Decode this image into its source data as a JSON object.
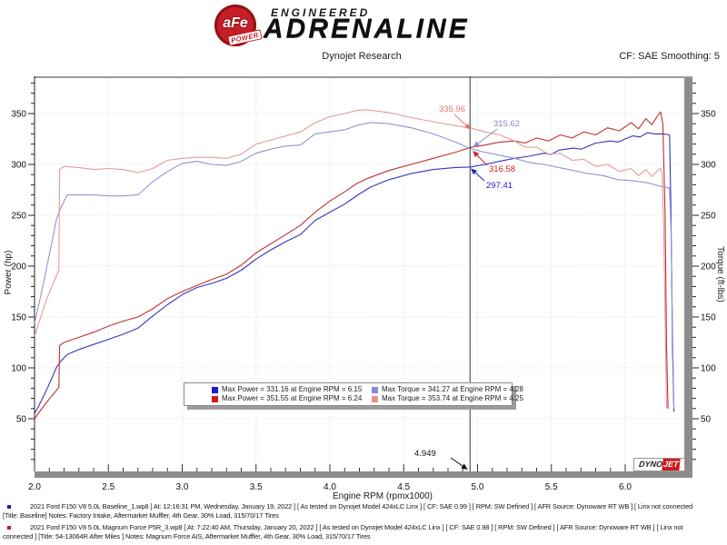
{
  "header": {
    "logo": {
      "afe": "aFe",
      "power": "POWER",
      "engineered": "ENGINEERED",
      "adrenaline": "ADRENALINE"
    },
    "title": "Dynojet Research",
    "smoothing": "CF: SAE Smoothing: 5"
  },
  "chart_data": {
    "type": "line",
    "title": "Dynojet Research",
    "xlabel": "Engine RPM (rpmx1000)",
    "ylabel_left": "Power (hp)",
    "ylabel_right": "Torque (ft-lbs)",
    "xlim": [
      2.0,
      6.4
    ],
    "ylim": [
      0,
      388
    ],
    "x_ticks": [
      "2.0",
      "2.5",
      "3.0",
      "3.5",
      "4.0",
      "4.5",
      "5.0",
      "5.5",
      "6.0"
    ],
    "y_ticks": [
      50,
      100,
      150,
      200,
      250,
      300,
      350
    ],
    "grid": true,
    "cursor_rpm": 4.949,
    "series": [
      {
        "name": "baseline-power",
        "axis": "power",
        "color": "#3434bd",
        "points": [
          [
            2.0,
            55
          ],
          [
            2.03,
            63
          ],
          [
            2.06,
            72
          ],
          [
            2.09,
            81
          ],
          [
            2.12,
            91
          ],
          [
            2.15,
            101
          ],
          [
            2.18,
            107
          ],
          [
            2.22,
            113
          ],
          [
            2.3,
            118
          ],
          [
            2.4,
            123
          ],
          [
            2.5,
            128
          ],
          [
            2.6,
            133
          ],
          [
            2.7,
            139
          ],
          [
            2.8,
            151
          ],
          [
            2.9,
            162
          ],
          [
            3.0,
            172
          ],
          [
            3.1,
            179
          ],
          [
            3.2,
            183
          ],
          [
            3.3,
            188
          ],
          [
            3.4,
            196
          ],
          [
            3.5,
            207
          ],
          [
            3.6,
            216
          ],
          [
            3.7,
            224
          ],
          [
            3.8,
            231
          ],
          [
            3.9,
            245
          ],
          [
            4.0,
            253
          ],
          [
            4.1,
            261
          ],
          [
            4.2,
            271
          ],
          [
            4.28,
            278
          ],
          [
            4.4,
            285
          ],
          [
            4.55,
            291
          ],
          [
            4.7,
            295
          ],
          [
            4.85,
            297
          ],
          [
            4.949,
            297.41
          ],
          [
            5.05,
            300
          ],
          [
            5.15,
            303
          ],
          [
            5.25,
            306
          ],
          [
            5.35,
            308
          ],
          [
            5.45,
            311
          ],
          [
            5.5,
            310
          ],
          [
            5.55,
            314
          ],
          [
            5.65,
            316
          ],
          [
            5.7,
            315
          ],
          [
            5.8,
            321
          ],
          [
            5.9,
            323
          ],
          [
            5.95,
            322
          ],
          [
            6.05,
            328
          ],
          [
            6.1,
            327
          ],
          [
            6.15,
            331.16
          ],
          [
            6.2,
            330
          ],
          [
            6.26,
            330
          ],
          [
            6.3,
            329
          ],
          [
            6.31,
            250
          ],
          [
            6.32,
            120
          ],
          [
            6.33,
            57
          ]
        ]
      },
      {
        "name": "magnum-power",
        "axis": "power",
        "color": "#c03030",
        "points": [
          [
            2.0,
            50
          ],
          [
            2.04,
            58
          ],
          [
            2.08,
            66
          ],
          [
            2.12,
            73
          ],
          [
            2.15,
            78
          ],
          [
            2.165,
            81
          ],
          [
            2.17,
            122
          ],
          [
            2.2,
            125
          ],
          [
            2.3,
            130
          ],
          [
            2.4,
            135
          ],
          [
            2.5,
            141
          ],
          [
            2.6,
            146
          ],
          [
            2.7,
            150
          ],
          [
            2.8,
            158
          ],
          [
            2.9,
            168
          ],
          [
            3.0,
            175
          ],
          [
            3.1,
            181
          ],
          [
            3.2,
            187
          ],
          [
            3.3,
            192
          ],
          [
            3.4,
            201
          ],
          [
            3.5,
            213
          ],
          [
            3.6,
            222
          ],
          [
            3.7,
            231
          ],
          [
            3.8,
            240
          ],
          [
            3.9,
            253
          ],
          [
            4.0,
            264
          ],
          [
            4.1,
            273
          ],
          [
            4.18,
            281
          ],
          [
            4.25,
            286
          ],
          [
            4.4,
            294
          ],
          [
            4.55,
            300
          ],
          [
            4.7,
            306
          ],
          [
            4.85,
            312
          ],
          [
            4.949,
            316.58
          ],
          [
            5.05,
            319
          ],
          [
            5.15,
            322
          ],
          [
            5.25,
            323
          ],
          [
            5.32,
            321
          ],
          [
            5.4,
            326
          ],
          [
            5.48,
            323
          ],
          [
            5.56,
            329
          ],
          [
            5.64,
            326
          ],
          [
            5.72,
            332
          ],
          [
            5.8,
            329
          ],
          [
            5.88,
            336
          ],
          [
            5.96,
            333
          ],
          [
            6.04,
            341
          ],
          [
            6.09,
            335
          ],
          [
            6.14,
            345
          ],
          [
            6.18,
            339
          ],
          [
            6.22,
            348
          ],
          [
            6.24,
            351.55
          ],
          [
            6.255,
            340
          ],
          [
            6.27,
            250
          ],
          [
            6.28,
            120
          ],
          [
            6.29,
            60
          ]
        ]
      },
      {
        "name": "baseline-torque",
        "axis": "torque",
        "color": "#9393d6",
        "points": [
          [
            2.0,
            144
          ],
          [
            2.03,
            163
          ],
          [
            2.06,
            183
          ],
          [
            2.09,
            204
          ],
          [
            2.12,
            225
          ],
          [
            2.15,
            247
          ],
          [
            2.18,
            258
          ],
          [
            2.22,
            270
          ],
          [
            2.3,
            270
          ],
          [
            2.4,
            270
          ],
          [
            2.5,
            269
          ],
          [
            2.6,
            269
          ],
          [
            2.7,
            270
          ],
          [
            2.8,
            283
          ],
          [
            2.9,
            293
          ],
          [
            3.0,
            301
          ],
          [
            3.1,
            303
          ],
          [
            3.2,
            300
          ],
          [
            3.3,
            299
          ],
          [
            3.4,
            303
          ],
          [
            3.5,
            311
          ],
          [
            3.6,
            315
          ],
          [
            3.7,
            318
          ],
          [
            3.8,
            319
          ],
          [
            3.9,
            330
          ],
          [
            4.0,
            332
          ],
          [
            4.1,
            334
          ],
          [
            4.2,
            339
          ],
          [
            4.28,
            341.27
          ],
          [
            4.4,
            340
          ],
          [
            4.55,
            336
          ],
          [
            4.7,
            330
          ],
          [
            4.85,
            322
          ],
          [
            4.949,
            315.62
          ],
          [
            5.05,
            312
          ],
          [
            5.15,
            309
          ],
          [
            5.25,
            306
          ],
          [
            5.35,
            302
          ],
          [
            5.45,
            300
          ],
          [
            5.55,
            297
          ],
          [
            5.65,
            294
          ],
          [
            5.75,
            291
          ],
          [
            5.85,
            289
          ],
          [
            5.95,
            285
          ],
          [
            6.05,
            284
          ],
          [
            6.15,
            282
          ],
          [
            6.25,
            278
          ],
          [
            6.3,
            277
          ],
          [
            6.31,
            235
          ],
          [
            6.32,
            140
          ],
          [
            6.33,
            60
          ]
        ]
      },
      {
        "name": "magnum-torque",
        "axis": "torque",
        "color": "#e49a9a",
        "points": [
          [
            2.0,
            131
          ],
          [
            2.04,
            149
          ],
          [
            2.08,
            167
          ],
          [
            2.12,
            181
          ],
          [
            2.15,
            191
          ],
          [
            2.165,
            196
          ],
          [
            2.17,
            295
          ],
          [
            2.2,
            298
          ],
          [
            2.3,
            297
          ],
          [
            2.4,
            295
          ],
          [
            2.5,
            296
          ],
          [
            2.6,
            295
          ],
          [
            2.7,
            292
          ],
          [
            2.8,
            296
          ],
          [
            2.9,
            304
          ],
          [
            3.0,
            306
          ],
          [
            3.1,
            307
          ],
          [
            3.2,
            307
          ],
          [
            3.3,
            306
          ],
          [
            3.4,
            310
          ],
          [
            3.5,
            320
          ],
          [
            3.6,
            324
          ],
          [
            3.7,
            328
          ],
          [
            3.8,
            332
          ],
          [
            3.9,
            341
          ],
          [
            4.0,
            347
          ],
          [
            4.1,
            350
          ],
          [
            4.18,
            353
          ],
          [
            4.25,
            353.74
          ],
          [
            4.4,
            351
          ],
          [
            4.55,
            346
          ],
          [
            4.7,
            342
          ],
          [
            4.85,
            338
          ],
          [
            4.949,
            335.96
          ],
          [
            5.05,
            332
          ],
          [
            5.15,
            329
          ],
          [
            5.25,
            323
          ],
          [
            5.32,
            317
          ],
          [
            5.4,
            317
          ],
          [
            5.48,
            310
          ],
          [
            5.56,
            311
          ],
          [
            5.64,
            304
          ],
          [
            5.72,
            305
          ],
          [
            5.8,
            298
          ],
          [
            5.88,
            300
          ],
          [
            5.96,
            293
          ],
          [
            6.04,
            296
          ],
          [
            6.09,
            289
          ],
          [
            6.14,
            295
          ],
          [
            6.18,
            288
          ],
          [
            6.22,
            294
          ],
          [
            6.24,
            296
          ],
          [
            6.25,
            290
          ],
          [
            6.26,
            240
          ],
          [
            6.27,
            150
          ],
          [
            6.28,
            60
          ]
        ]
      }
    ],
    "annotations": [
      {
        "label": "335.96",
        "color": "#e07878",
        "text": [
          512,
          123
        ],
        "anchor": "end",
        "line": [
          [
            500,
            126
          ],
          [
            513,
            138
          ]
        ]
      },
      {
        "label": "315.62",
        "color": "#8888cc",
        "text": [
          543,
          139
        ],
        "anchor": "start",
        "line": [
          [
            547,
            142
          ],
          [
            526,
            158
          ]
        ]
      },
      {
        "label": "316.58",
        "color": "#cc2222",
        "text": [
          538,
          189
        ],
        "anchor": "start",
        "line": [
          [
            536,
            182
          ],
          [
            525,
            171
          ]
        ]
      },
      {
        "label": "297.41",
        "color": "#2222cc",
        "text": [
          535,
          207
        ],
        "anchor": "start",
        "line": [
          [
            533,
            199
          ],
          [
            523,
            190
          ]
        ]
      },
      {
        "label": "4.949",
        "color": "#111111",
        "text": [
          456,
          502
        ],
        "anchor": "start",
        "line": [
          [
            496,
            504
          ],
          [
            509,
            513
          ]
        ]
      }
    ],
    "legend": {
      "items": [
        {
          "label": "Max Power = 331.16 at Engine RPM = 6.15",
          "color": "#1a1ad2"
        },
        {
          "label": "Max Torque = 341.27 at Engine RPM = 4.28",
          "color": "#8888dd"
        },
        {
          "label": "Max Power = 351.55 at Engine RPM = 6.24",
          "color": "#d21a1a"
        },
        {
          "label": "Max Torque = 353.74 at Engine RPM = 4.25",
          "color": "#e88f8f"
        }
      ]
    }
  },
  "branding": {
    "dynojet_dyno": "DYNO",
    "dynojet_jet": "JET"
  },
  "footer": {
    "runs": [
      {
        "bullet_color": "#2020c8",
        "line1": "2021 Ford F150 V8 5.0L Baseline_1.wp8 [ At: 12:16:31 PM, Wednesday, January 19, 2022 ] [ As tested on Dynojet Model 424xLC Linx ] [ CF: SAE 0.99 ] [ RPM: SW Defined ] [ AFR Source: Dynoware RT WB ] [ Linx not connected",
        "line2": "[Title: Baseline]  Notes: Factory Intake, Aftermarket Muffler, 4th Gear, 30% Load, 315/70/17 Tires"
      },
      {
        "bullet_color": "#c82020",
        "line1": "2021 Ford F150 V8 5.0L Magnum Force P5R_3.wp8 [ At: 7:22:40 AM, Thursday, January 20, 2022 ] [ As tested on Dynojet Model 424xLC Linx ] [ CF: SAE 0.98 ] [ RPM: SW Defined ] [ AFR Source: Dynoware RT WB ] [ Linx not",
        "line2": "connected ] [Title: 54-13064R After Miles ]  Notes: Magnum Force AIS, Aftermarket Muffler, 4th Gear, 30% Load, 315/70/17 Tires"
      }
    ]
  }
}
